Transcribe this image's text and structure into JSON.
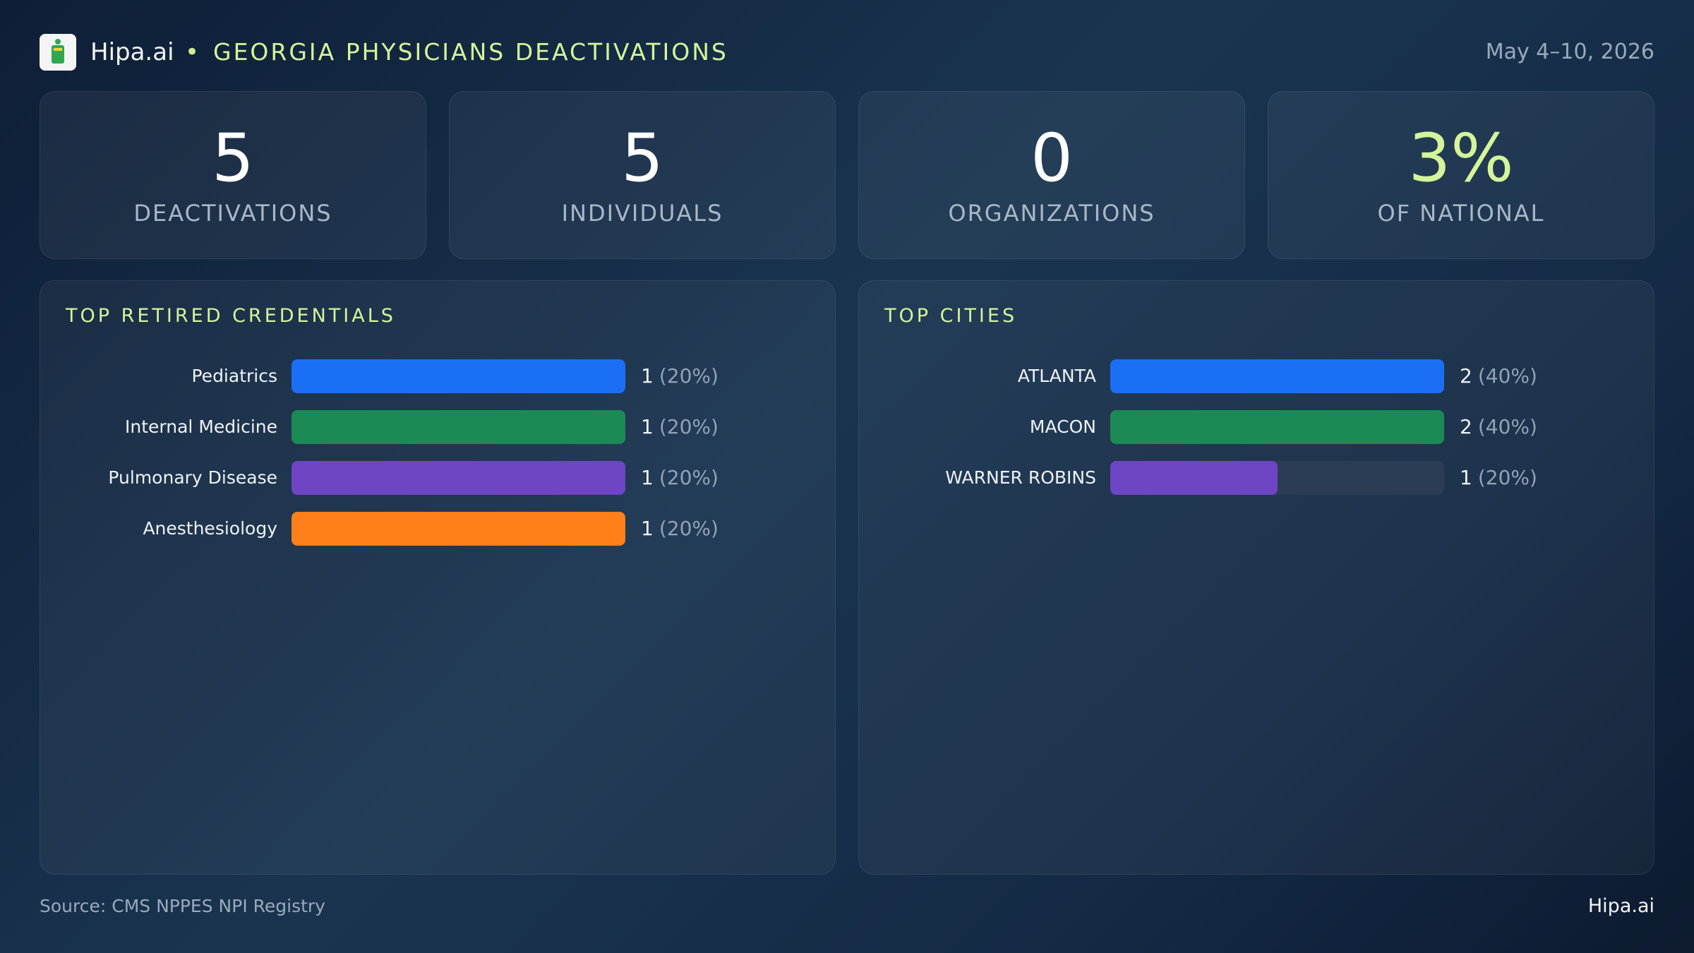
{
  "header": {
    "brand": "Hipa.ai",
    "title": "GEORGIA PHYSICIANS DEACTIVATIONS",
    "date": "May 4–10, 2026"
  },
  "stats": [
    {
      "value": "5",
      "label": "DEACTIVATIONS"
    },
    {
      "value": "5",
      "label": "INDIVIDUALS"
    },
    {
      "value": "0",
      "label": "ORGANIZATIONS"
    },
    {
      "value": "3%",
      "label": "OF NATIONAL"
    }
  ],
  "chart_data": [
    {
      "type": "bar",
      "orientation": "horizontal",
      "title": "TOP RETIRED CREDENTIALS",
      "categories": [
        "Pediatrics",
        "Internal Medicine",
        "Pulmonary Disease",
        "Anesthesiology"
      ],
      "values": [
        1,
        1,
        1,
        1
      ],
      "share_labels": [
        "(20%)",
        "(20%)",
        "(20%)",
        "(20%)"
      ],
      "colors": [
        "#1a6ff5",
        "#1c8a54",
        "#6e45c4",
        "#ff7f18"
      ],
      "xlim": [
        0,
        1
      ]
    },
    {
      "type": "bar",
      "orientation": "horizontal",
      "title": "TOP CITIES",
      "categories": [
        "ATLANTA",
        "MACON",
        "WARNER ROBINS"
      ],
      "values": [
        2,
        2,
        1
      ],
      "share_labels": [
        "(40%)",
        "(40%)",
        "(20%)"
      ],
      "colors": [
        "#1a6ff5",
        "#1c8a54",
        "#6e45c4"
      ],
      "xlim": [
        0,
        2
      ]
    }
  ],
  "footer": {
    "source": "Source: CMS NPPES NPI Registry",
    "brand": "Hipa.ai"
  }
}
